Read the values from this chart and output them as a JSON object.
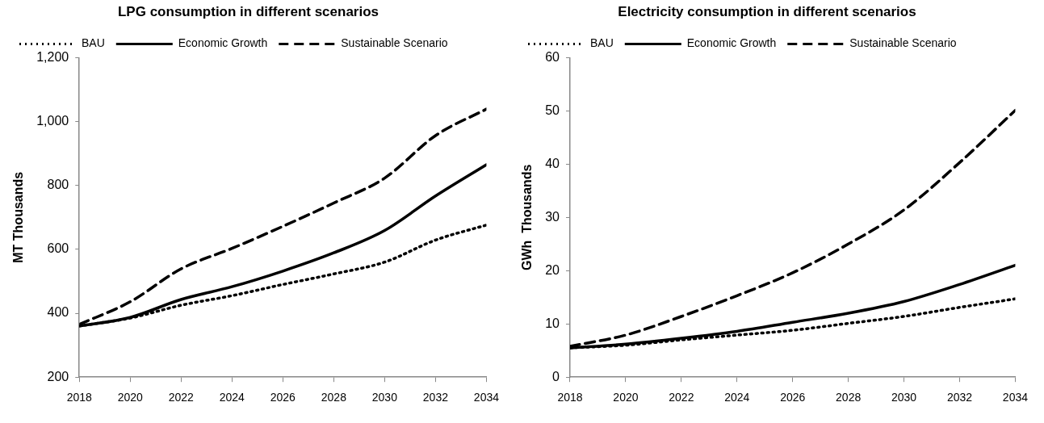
{
  "chart_data": [
    {
      "type": "line",
      "title": "LPG consumption in different scenarios",
      "ylabel": "MT Thousands",
      "x": [
        2018,
        2020,
        2022,
        2024,
        2026,
        2028,
        2030,
        2032,
        2034
      ],
      "xlim": [
        2018,
        2034
      ],
      "xticks": [
        2018,
        2020,
        2022,
        2024,
        2026,
        2028,
        2030,
        2032,
        2034
      ],
      "ylim": [
        200,
        1200
      ],
      "yticks": [
        200,
        400,
        600,
        800,
        {
          "value": 1000,
          "label": "1,000"
        },
        {
          "value": 1200,
          "label": "1,200"
        }
      ],
      "grid": false,
      "legend": "top",
      "marker": "none",
      "series": [
        {
          "name": "BAU",
          "color": "#000000",
          "line_style": "dotted",
          "values": [
            360,
            385,
            425,
            455,
            490,
            523,
            560,
            629,
            676
          ]
        },
        {
          "name": "Economic Growth",
          "color": "#000000",
          "line_style": "solid",
          "values": [
            360,
            387,
            443,
            483,
            532,
            589,
            659,
            767,
            865
          ]
        },
        {
          "name": "Sustainable Scenario",
          "color": "#000000",
          "line_style": "dashed",
          "values": [
            365,
            436,
            539,
            603,
            672,
            745,
            823,
            956,
            1039
          ]
        }
      ]
    },
    {
      "type": "line",
      "title": "Electricity consumption in different scenarios",
      "ylabel": "GWh  Thousands",
      "x": [
        2018,
        2020,
        2022,
        2024,
        2026,
        2028,
        2030,
        2032,
        2034
      ],
      "xlim": [
        2018,
        2034
      ],
      "xticks": [
        2018,
        2020,
        2022,
        2024,
        2026,
        2028,
        2030,
        2032,
        2034
      ],
      "ylim": [
        0,
        60
      ],
      "yticks": [
        0,
        10,
        20,
        30,
        40,
        50,
        60
      ],
      "grid": false,
      "legend": "top",
      "marker": "none",
      "series": [
        {
          "name": "BAU",
          "color": "#000000",
          "line_style": "dotted",
          "values": [
            5.5,
            6.0,
            7.0,
            7.9,
            8.8,
            10.1,
            11.4,
            13.1,
            14.7
          ]
        },
        {
          "name": "Economic Growth",
          "color": "#000000",
          "line_style": "solid",
          "values": [
            5.5,
            6.2,
            7.3,
            8.6,
            10.3,
            12.0,
            14.2,
            17.4,
            21.0
          ]
        },
        {
          "name": "Sustainable Scenario",
          "color": "#000000",
          "line_style": "dashed",
          "values": [
            5.8,
            7.9,
            11.4,
            15.3,
            19.6,
            25.0,
            31.4,
            40.3,
            50.1
          ]
        }
      ]
    }
  ]
}
